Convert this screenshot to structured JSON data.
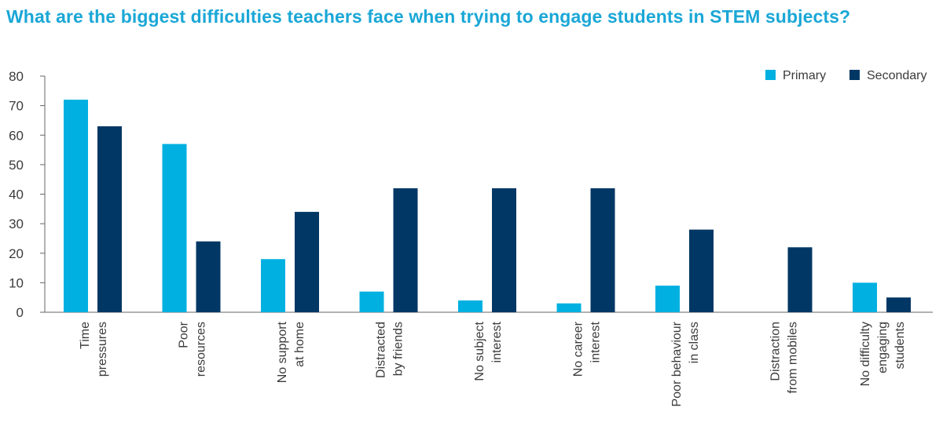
{
  "title": "What are the biggest difficulties teachers face when trying to engage students in STEM subjects?",
  "chart_data": {
    "type": "bar",
    "title": "What are the biggest difficulties teachers face when trying to engage students in STEM subjects?",
    "xlabel": "",
    "ylabel": "",
    "ylim": [
      0,
      80
    ],
    "yticks": [
      0,
      10,
      20,
      30,
      40,
      50,
      60,
      70,
      80
    ],
    "grid": false,
    "legend_position": "top-right",
    "categories": [
      [
        "Time",
        "pressures"
      ],
      [
        "Poor",
        "resources"
      ],
      [
        "No support",
        "at home"
      ],
      [
        "Distracted",
        "by friends"
      ],
      [
        "No subject",
        "interest"
      ],
      [
        "No career",
        "interest"
      ],
      [
        "Poor behaviour",
        "in class"
      ],
      [
        "Distraction",
        "from mobiles"
      ],
      [
        "No difficulty",
        "engaging",
        "students"
      ]
    ],
    "series": [
      {
        "name": "Primary",
        "color": "#00b0e0",
        "values": [
          72,
          57,
          18,
          7,
          4,
          3,
          9,
          0,
          10
        ]
      },
      {
        "name": "Secondary",
        "color": "#003764",
        "values": [
          63,
          24,
          34,
          42,
          42,
          42,
          28,
          22,
          5
        ]
      }
    ]
  }
}
